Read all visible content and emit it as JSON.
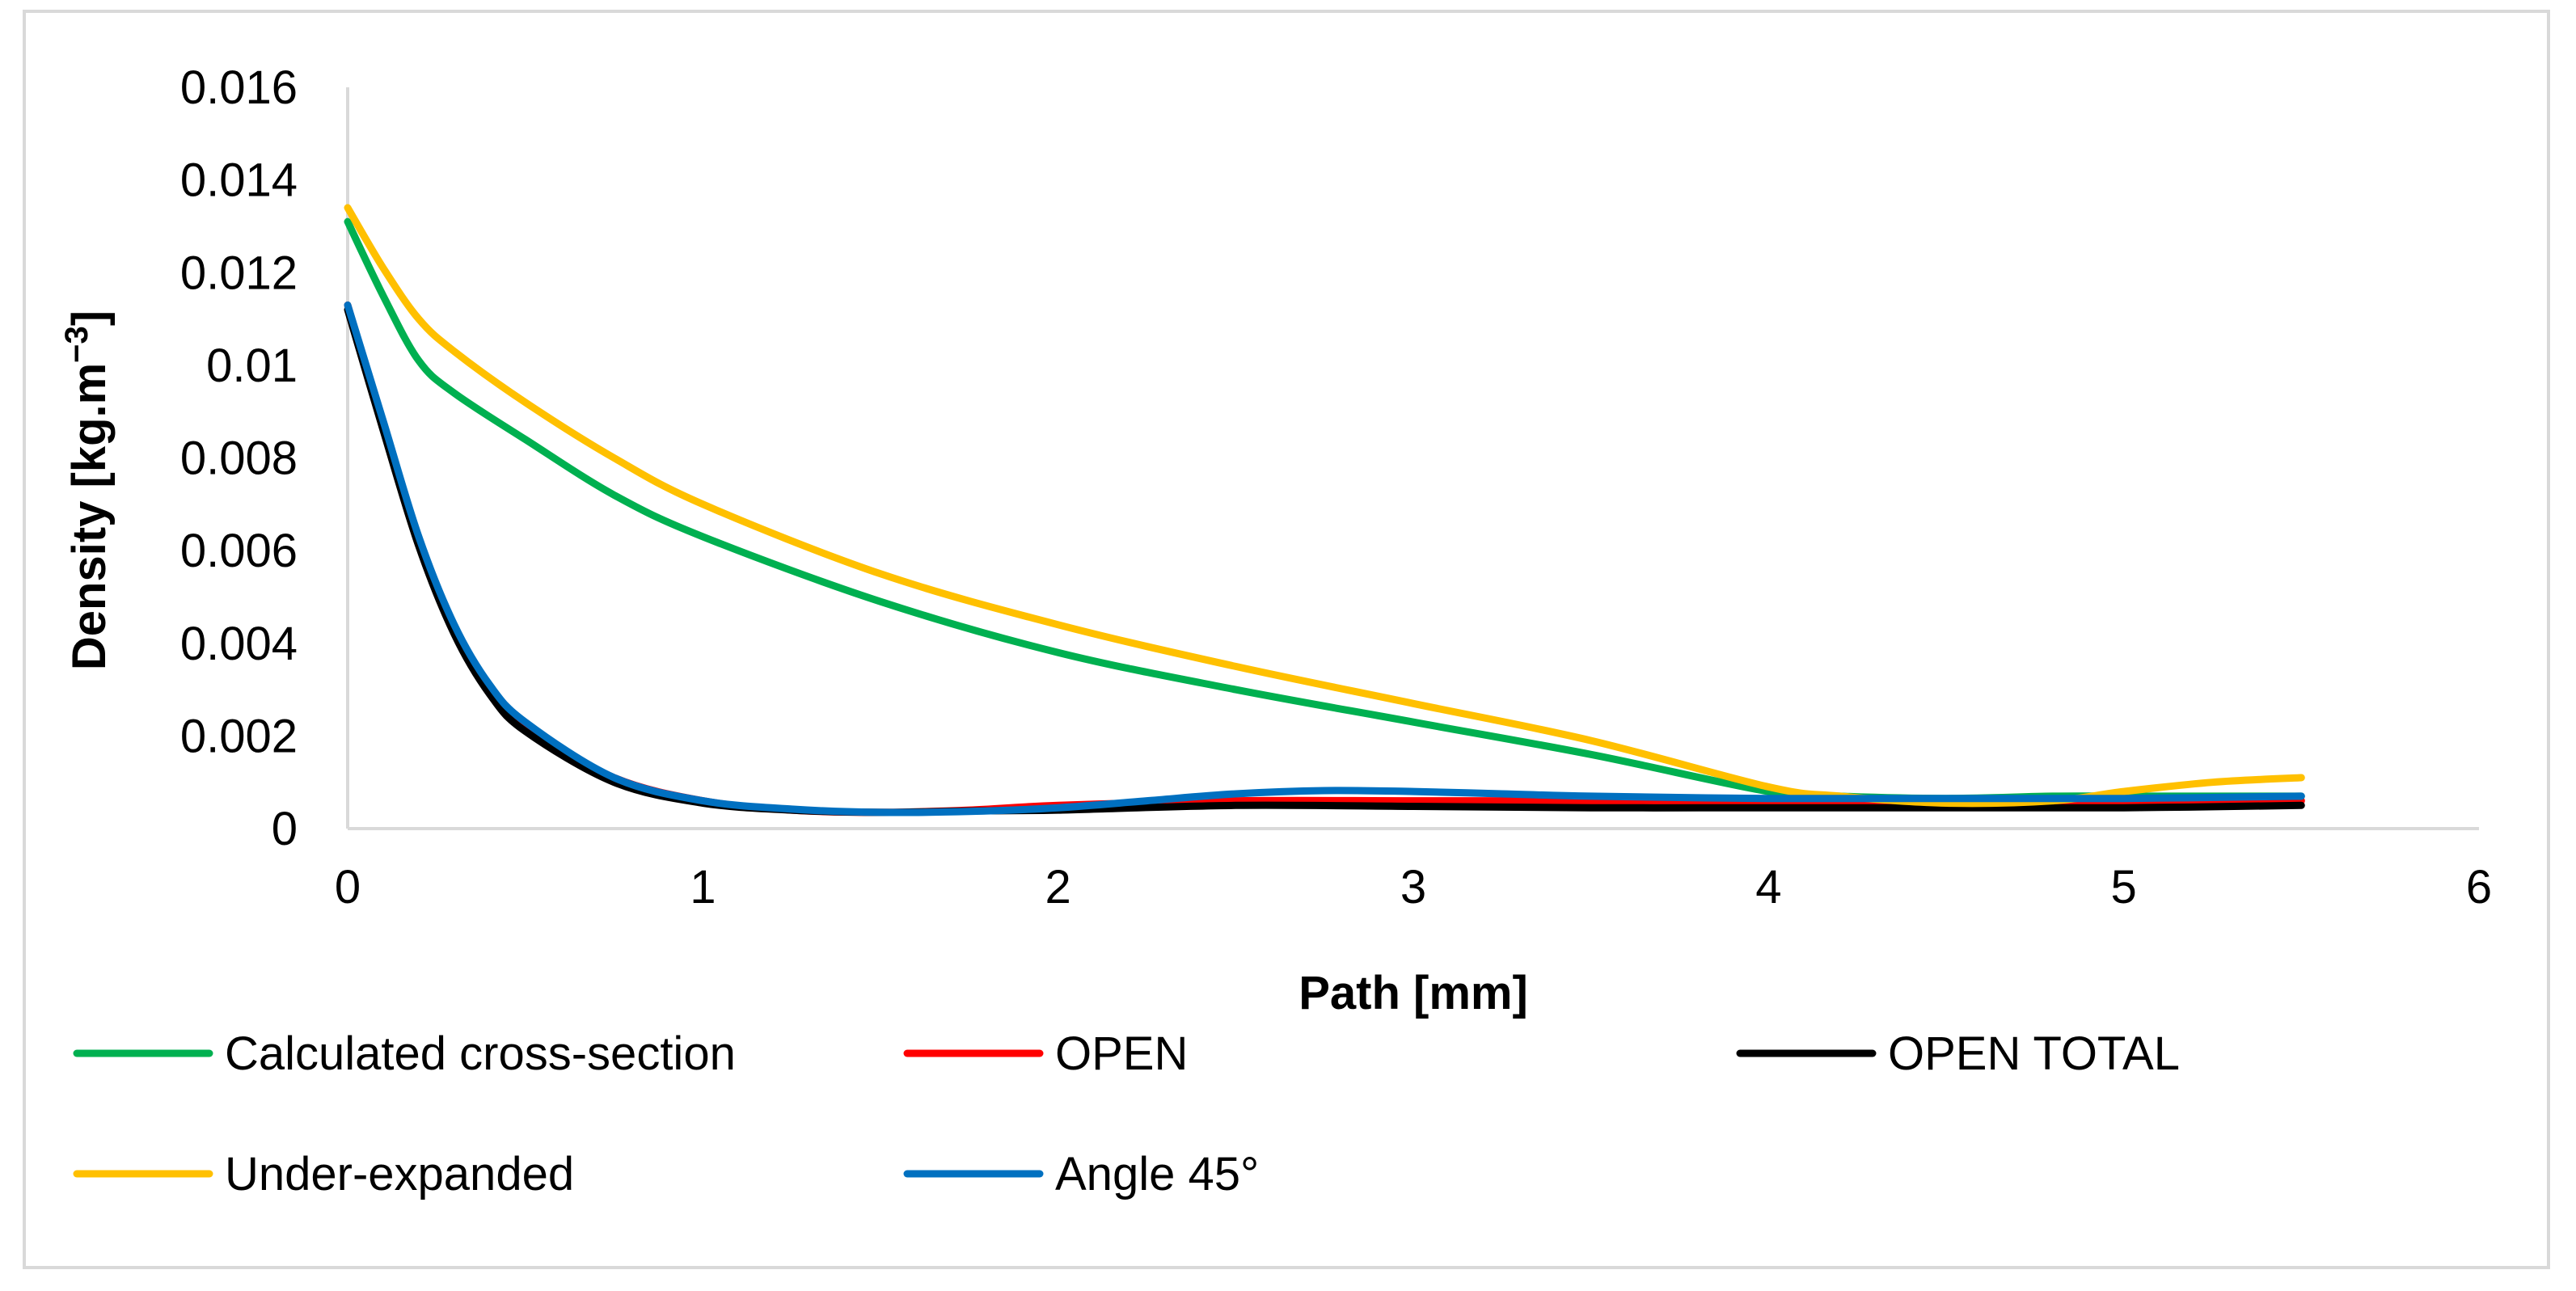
{
  "chart_data": {
    "type": "line",
    "title": "",
    "xlabel": "Path [mm]",
    "ylabel_main": "Density [kg.m",
    "ylabel_sup": "−3",
    "ylabel_close": "]",
    "xlim": [
      0,
      6
    ],
    "ylim": [
      0,
      0.016
    ],
    "x_ticks": [
      0,
      1,
      2,
      3,
      4,
      5,
      6
    ],
    "x_tick_labels": [
      "0",
      "1",
      "2",
      "3",
      "4",
      "5",
      "6"
    ],
    "y_ticks": [
      0,
      0.002,
      0.004,
      0.006,
      0.008,
      0.01,
      0.012,
      0.014,
      0.016
    ],
    "y_tick_labels": [
      "0",
      "0.002",
      "0.004",
      "0.006",
      "0.008",
      "0.01",
      "0.012",
      "0.014",
      "0.016"
    ],
    "grid": false,
    "legend_position": "bottom",
    "series": [
      {
        "name": "Calculated cross-section",
        "color": "#00b050",
        "x": [
          0,
          0.1,
          0.2,
          0.3,
          0.5,
          0.75,
          1,
          1.5,
          2,
          2.5,
          3,
          3.5,
          4,
          4.2,
          4.5,
          4.8,
          5,
          5.25,
          5.5
        ],
        "y": [
          0.0131,
          0.0115,
          0.0101,
          0.0094,
          0.0084,
          0.0072,
          0.0063,
          0.0049,
          0.0038,
          0.003,
          0.0023,
          0.0016,
          0.0008,
          0.0007,
          0.00065,
          0.0007,
          0.0007,
          0.0007,
          0.0007
        ]
      },
      {
        "name": "OPEN",
        "color": "#ff0000",
        "x": [
          0,
          0.1,
          0.2,
          0.3,
          0.4,
          0.5,
          0.75,
          1,
          1.25,
          1.5,
          1.75,
          2,
          2.5,
          3,
          3.5,
          4,
          4.5,
          5,
          5.5
        ],
        "y": [
          0.0113,
          0.0087,
          0.0062,
          0.0043,
          0.003,
          0.0022,
          0.0011,
          0.0006,
          0.0004,
          0.00035,
          0.0004,
          0.0005,
          0.0006,
          0.0006,
          0.0006,
          0.0006,
          0.0006,
          0.0006,
          0.0006
        ]
      },
      {
        "name": "OPEN TOTAL",
        "color": "#000000",
        "x": [
          0,
          0.1,
          0.2,
          0.3,
          0.4,
          0.5,
          0.75,
          1,
          1.25,
          1.5,
          1.75,
          2,
          2.5,
          3,
          3.5,
          4,
          4.5,
          5,
          5.5
        ],
        "y": [
          0.0112,
          0.0086,
          0.0061,
          0.0042,
          0.0029,
          0.0021,
          0.001,
          0.00055,
          0.0004,
          0.00035,
          0.00038,
          0.0004,
          0.0005,
          0.00048,
          0.00045,
          0.00045,
          0.00045,
          0.00045,
          0.0005
        ]
      },
      {
        "name": "Under-expanded",
        "color": "#ffc000",
        "x": [
          0,
          0.1,
          0.2,
          0.3,
          0.5,
          0.75,
          1,
          1.5,
          2,
          2.5,
          3,
          3.5,
          4,
          4.2,
          4.5,
          4.8,
          5,
          5.25,
          5.5
        ],
        "y": [
          0.0134,
          0.0121,
          0.011,
          0.0103,
          0.0092,
          0.008,
          0.007,
          0.0055,
          0.0044,
          0.0035,
          0.0027,
          0.0019,
          0.0009,
          0.0007,
          0.00055,
          0.0006,
          0.0008,
          0.001,
          0.0011
        ]
      },
      {
        "name": "Angle 45°",
        "color": "#0070c0",
        "x": [
          0,
          0.1,
          0.2,
          0.3,
          0.4,
          0.5,
          0.75,
          1,
          1.25,
          1.5,
          1.75,
          2,
          2.25,
          2.5,
          2.75,
          3,
          3.25,
          3.5,
          4,
          4.5,
          5,
          5.5
        ],
        "y": [
          0.0113,
          0.0088,
          0.0063,
          0.0044,
          0.0031,
          0.0023,
          0.0011,
          0.0006,
          0.00042,
          0.00035,
          0.00037,
          0.00045,
          0.0006,
          0.00075,
          0.00082,
          0.0008,
          0.00075,
          0.0007,
          0.00065,
          0.00065,
          0.00065,
          0.0007
        ]
      }
    ]
  }
}
